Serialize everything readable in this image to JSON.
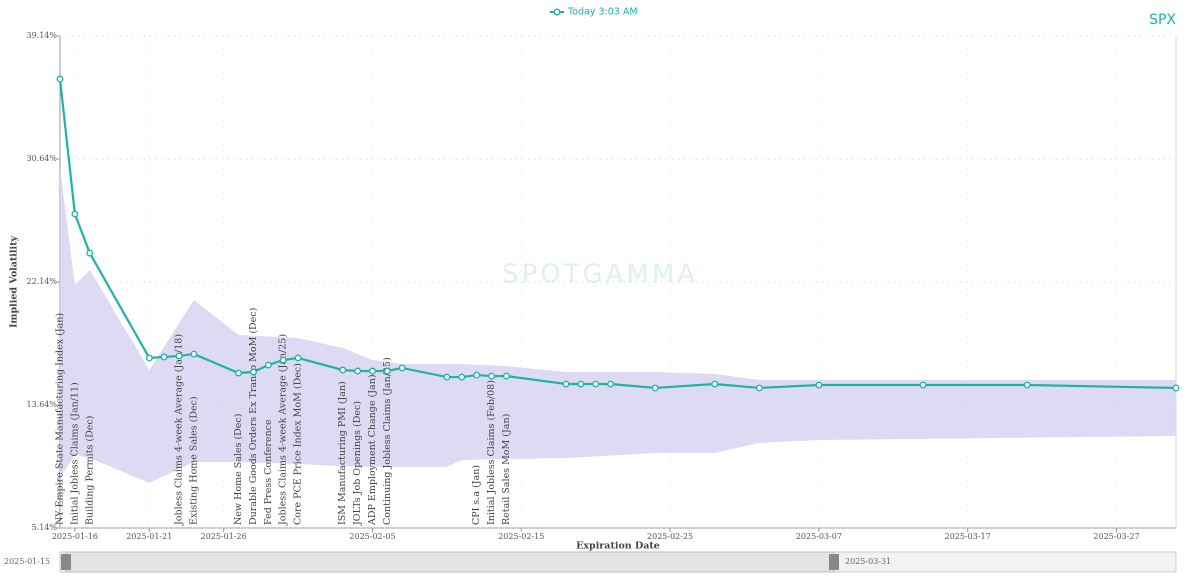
{
  "chart_data": {
    "type": "line",
    "ticker": "SPX",
    "watermark": "SPOTGAMMA",
    "x_label": "Expiration Date",
    "y_label": "Implied Volatility",
    "xlim": [
      "2025-01-15",
      "2025-03-31"
    ],
    "ylim": [
      5.14,
      39.14
    ],
    "xticks": [
      "2025-01-16",
      "2025-01-21",
      "2025-01-26",
      "2025-02-05",
      "2025-02-15",
      "2025-02-25",
      "2025-03-07",
      "2025-03-17",
      "2025-03-27"
    ],
    "yticks": [
      {
        "value": 5.14,
        "label": "5.14%"
      },
      {
        "value": 13.64,
        "label": "13.64%"
      },
      {
        "value": 22.14,
        "label": "22.14%"
      },
      {
        "value": 30.64,
        "label": "30.64%"
      },
      {
        "value": 39.14,
        "label": "39.14%"
      }
    ],
    "grid": true,
    "legend": "top",
    "series": [
      {
        "name": "Today 3:03 AM",
        "color": "#1fb3a3",
        "x": [
          "2025-01-15",
          "2025-01-16",
          "2025-01-17",
          "2025-01-21",
          "2025-01-22",
          "2025-01-23",
          "2025-01-24",
          "2025-01-27",
          "2025-01-28",
          "2025-01-29",
          "2025-01-30",
          "2025-01-31",
          "2025-02-03",
          "2025-02-04",
          "2025-02-05",
          "2025-02-06",
          "2025-02-07",
          "2025-02-10",
          "2025-02-11",
          "2025-02-12",
          "2025-02-13",
          "2025-02-14",
          "2025-02-18",
          "2025-02-19",
          "2025-02-20",
          "2025-02-21",
          "2025-02-24",
          "2025-02-28",
          "2025-03-03",
          "2025-03-07",
          "2025-03-14",
          "2025-03-21",
          "2025-03-31"
        ],
        "values": [
          36.17,
          26.84,
          24.14,
          16.89,
          16.96,
          17.03,
          17.16,
          15.85,
          15.92,
          16.4,
          16.75,
          16.89,
          16.06,
          15.99,
          15.99,
          15.99,
          16.2,
          15.57,
          15.57,
          15.71,
          15.64,
          15.64,
          15.09,
          15.09,
          15.09,
          15.09,
          14.82,
          15.09,
          14.82,
          15.02,
          15.02,
          15.02,
          14.82
        ]
      }
    ],
    "band": {
      "color": "#d8d3f2",
      "x": [
        "2025-01-15",
        "2025-01-16",
        "2025-01-17",
        "2025-01-21",
        "2025-01-24",
        "2025-01-27",
        "2025-01-31",
        "2025-02-03",
        "2025-02-05",
        "2025-02-07",
        "2025-02-10",
        "2025-02-11",
        "2025-02-14",
        "2025-02-18",
        "2025-02-24",
        "2025-02-28",
        "2025-03-03",
        "2025-03-07",
        "2025-03-31"
      ],
      "upper": [
        30.02,
        21.93,
        22.97,
        16.06,
        20.9,
        18.48,
        18.27,
        17.58,
        16.75,
        16.47,
        16.47,
        16.47,
        16.33,
        15.92,
        15.92,
        15.78,
        15.37,
        15.37,
        15.37
      ],
      "lower": [
        8.6,
        10.19,
        9.98,
        8.25,
        9.7,
        9.7,
        9.56,
        9.42,
        9.36,
        9.36,
        9.36,
        9.84,
        9.91,
        9.98,
        10.32,
        10.32,
        11.02,
        11.22,
        11.5
      ]
    },
    "events": [
      {
        "date": "2025-01-15",
        "label": "NY Empire State Manufacturing Index (Jan)"
      },
      {
        "date": "2025-01-16",
        "label": "Initial Jobless Claims (Jan/11)"
      },
      {
        "date": "2025-01-17",
        "label": "Building Permits (Dec)"
      },
      {
        "date": "2025-01-23",
        "label": "Jobless Claims 4-week Average (Jan/18)"
      },
      {
        "date": "2025-01-24",
        "label": "Existing Home Sales (Dec)"
      },
      {
        "date": "2025-01-27",
        "label": "New Home Sales (Dec)"
      },
      {
        "date": "2025-01-28",
        "label": "Durable Goods Orders Ex Transp MoM (Dec)"
      },
      {
        "date": "2025-01-29",
        "label": "Fed Press Conference"
      },
      {
        "date": "2025-01-30",
        "label": "Jobless Claims 4-week Average (Jan/25)"
      },
      {
        "date": "2025-01-31",
        "label": "Core PCE Price Index MoM (Dec)"
      },
      {
        "date": "2025-02-03",
        "label": "ISM Manufacturing PMI (Jan)"
      },
      {
        "date": "2025-02-04",
        "label": "JOLTs Job Openings (Dec)"
      },
      {
        "date": "2025-02-05",
        "label": "ADP Employment Change (Jan)"
      },
      {
        "date": "2025-02-06",
        "label": "Continuing Jobless Claims (Jan/25)"
      },
      {
        "date": "2025-02-12",
        "label": "CPI s.a (Jan)"
      },
      {
        "date": "2025-02-13",
        "label": "Initial Jobless Claims (Feb/08)"
      },
      {
        "date": "2025-02-14",
        "label": "Retail Sales MoM (Jan)"
      }
    ]
  }
}
